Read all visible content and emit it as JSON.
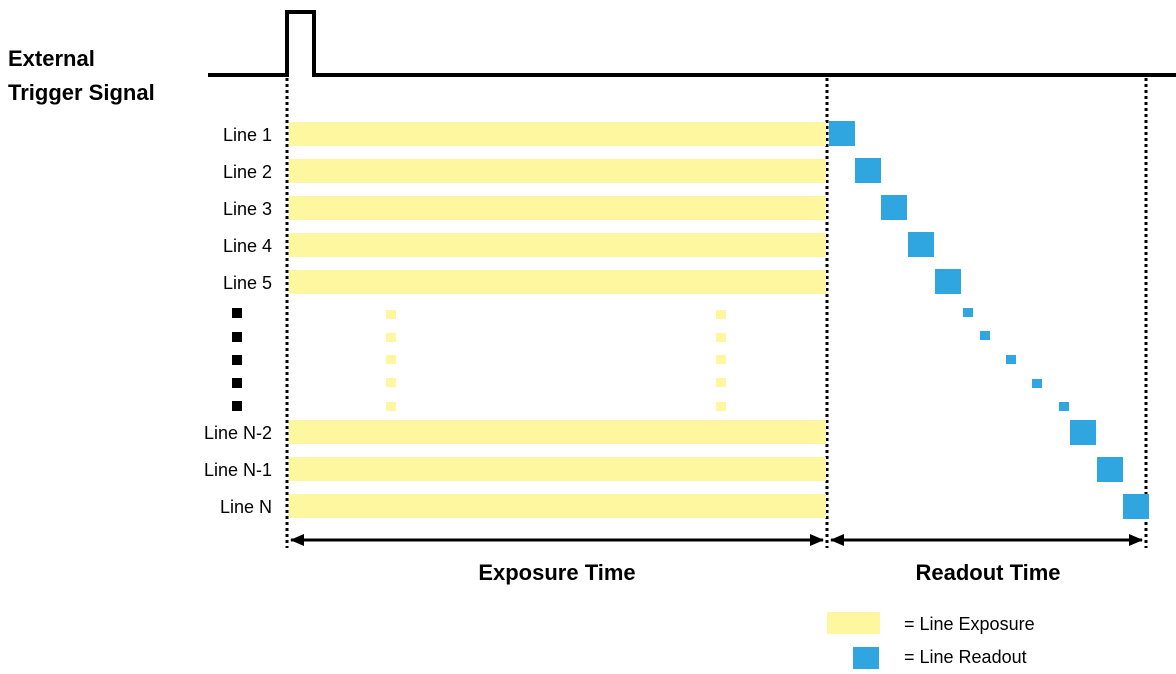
{
  "trigger": {
    "label_line1": "External",
    "label_line2": "Trigger Signal"
  },
  "lines": {
    "top": [
      "Line 1",
      "Line 2",
      "Line 3",
      "Line 4",
      "Line 5"
    ],
    "bottom": [
      "Line N-2",
      "Line N-1",
      "Line N"
    ]
  },
  "phases": {
    "exposure": "Exposure Time",
    "readout": "Readout Time"
  },
  "legend": {
    "exposure": "= Line Exposure",
    "readout": "= Line Readout"
  },
  "colors": {
    "exposure": "#fef79f",
    "readout": "#2fa6e0",
    "ink": "#000000"
  }
}
